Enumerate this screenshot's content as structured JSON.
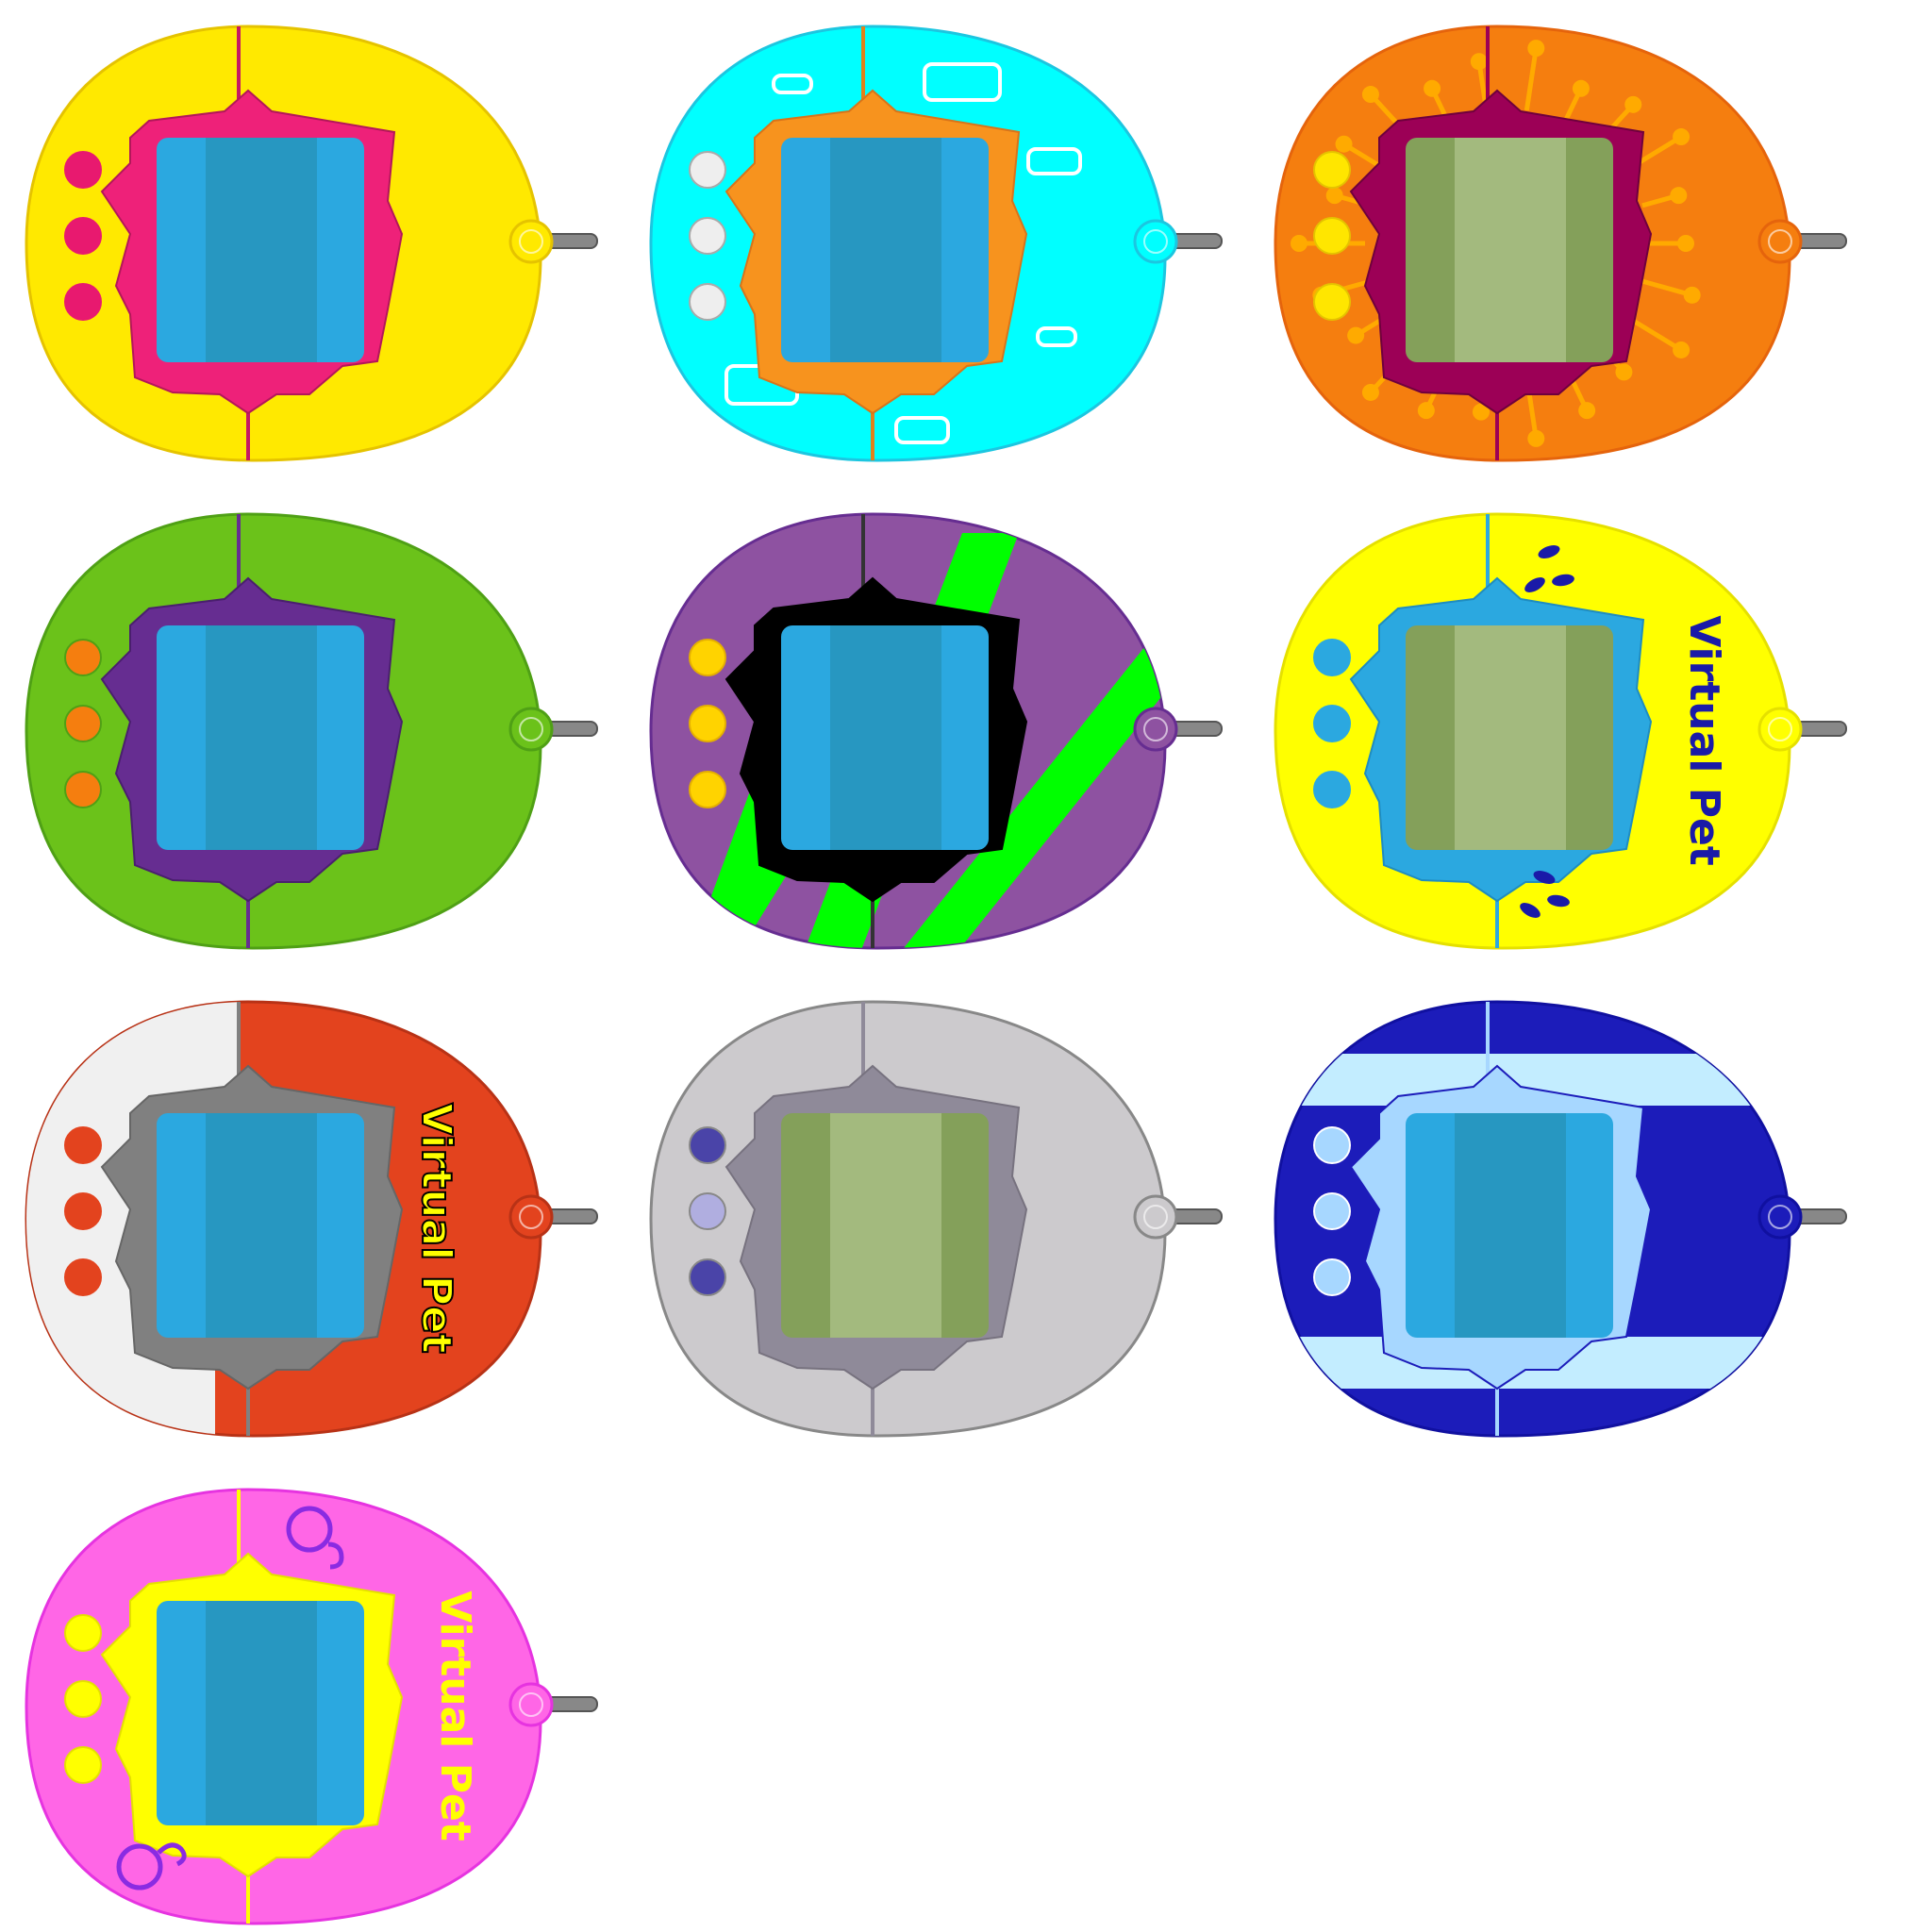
{
  "brand_text": "Virtual Pet",
  "devices": [
    {
      "id": "yellow-pink",
      "shell": "#FFE900",
      "shell_stroke": "#E5C300",
      "frame": "#EE2179",
      "frame_stroke": "#B3175A",
      "screen": "#2BA8E0",
      "screen_mid": "#2797C1",
      "buttons": [
        "#E8196F",
        "#E8196F",
        "#E8196F"
      ],
      "button_stroke": "#E8196F",
      "seam": "#C51764",
      "decor": "none"
    },
    {
      "id": "cyan-orange",
      "shell": "#00FFFF",
      "shell_stroke": "#1CC6E0",
      "frame": "#F7931E",
      "frame_stroke": "#D8741A",
      "screen": "#2BA8E0",
      "screen_mid": "#2797C1",
      "buttons": [
        "#EEEEEE",
        "#EEEEEE",
        "#EEEEEE"
      ],
      "button_stroke": "#AAAAAA",
      "seam": "#E1811C",
      "decor": "rounded-rects"
    },
    {
      "id": "orange-magenta",
      "shell": "#F57E0F",
      "shell_stroke": "#E5640C",
      "frame": "#9C0056",
      "frame_stroke": "#6F003D",
      "screen": "#84A05A",
      "screen_mid": "#A3BA7E",
      "buttons": [
        "#FFE600",
        "#FFE600",
        "#FFE600"
      ],
      "button_stroke": "#E5C300",
      "seam": "#9C0056",
      "decor": "dots"
    },
    {
      "id": "green-purple",
      "shell": "#6BC21A",
      "shell_stroke": "#4FA015",
      "frame": "#662D91",
      "frame_stroke": "#4A1F6E",
      "screen": "#2BA8E0",
      "screen_mid": "#2797C1",
      "buttons": [
        "#F57E0F",
        "#F57E0F",
        "#F57E0F"
      ],
      "button_stroke": "#4FA015",
      "seam": "#662D91",
      "decor": "none"
    },
    {
      "id": "purple-black",
      "shell": "#8E52A1",
      "shell_stroke": "#662D91",
      "frame": "#000000",
      "frame_stroke": "#000000",
      "screen": "#2BA8E0",
      "screen_mid": "#2797C1",
      "buttons": [
        "#FFD300",
        "#FFD300",
        "#FFD300"
      ],
      "button_stroke": "#E5B000",
      "seam": "#333333",
      "decor": "stripes"
    },
    {
      "id": "yellow-blue",
      "shell": "#FFFF00",
      "shell_stroke": "#E5E000",
      "frame": "#2BA8E0",
      "frame_stroke": "#1F8CC0",
      "screen": "#84A05A",
      "screen_mid": "#A3BA7E",
      "buttons": [
        "#2BA8E0",
        "#2BA8E0",
        "#2BA8E0"
      ],
      "button_stroke": "#2BA8E0",
      "seam": "#2BA8E0",
      "decor": "brand-drops",
      "brand_color": "#1A1AA8"
    },
    {
      "id": "white-red",
      "shell": "#E3431E",
      "shell_stroke": "#B83216",
      "frame": "#808080",
      "frame_stroke": "#666666",
      "screen": "#2BA8E0",
      "screen_mid": "#2797C1",
      "buttons": [
        "#E3431E",
        "#E3431E",
        "#E3431E"
      ],
      "button_stroke": "#E3431E",
      "seam": "#808080",
      "decor": "brand-split",
      "brand_color": "#FFFF00",
      "split_color": "#F0F0F0"
    },
    {
      "id": "grey",
      "shell": "#CCCACD",
      "shell_stroke": "#888888",
      "frame": "#8F8A99",
      "frame_stroke": "#77727F",
      "screen": "#84A05A",
      "screen_mid": "#A3BA7E",
      "buttons": [
        "#4A44A8",
        "#B0AEE0",
        "#4A44A8"
      ],
      "button_stroke": "#888888",
      "seam": "#8F8A99",
      "decor": "none"
    },
    {
      "id": "navy-lightblue",
      "shell": "#1C1CBA",
      "shell_stroke": "#1010A0",
      "frame": "#A7D7FF",
      "frame_stroke": "#1C1CBA",
      "screen": "#2BA8E0",
      "screen_mid": "#2797C1",
      "buttons": [
        "#A7D7FF",
        "#A7D7FF",
        "#A7D7FF"
      ],
      "button_stroke": "#FFFFFF",
      "seam": "#A7D7FF",
      "decor": "bands",
      "band_color": "#C3EDFF"
    },
    {
      "id": "pink-yellow",
      "shell": "#FF66E6",
      "shell_stroke": "#E633E0",
      "frame": "#FFFF00",
      "frame_stroke": "#E5E000",
      "screen": "#2BA8E0",
      "screen_mid": "#2797C1",
      "buttons": [
        "#FFFF00",
        "#FFFF00",
        "#FFFF00"
      ],
      "button_stroke": "#E5E000",
      "seam": "#FFFF00",
      "decor": "brand-symbols",
      "brand_color": "#FFFF00",
      "symbol_color": "#8A2BE2"
    }
  ]
}
